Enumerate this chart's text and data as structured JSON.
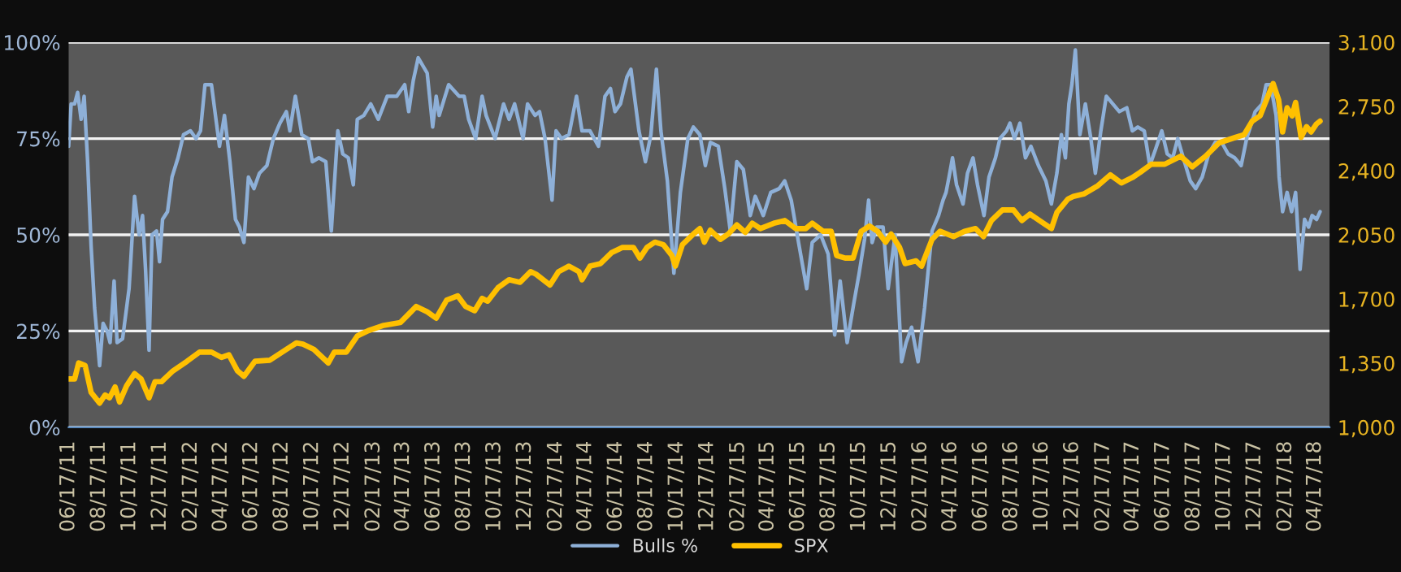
{
  "chart_data": {
    "type": "line",
    "xlim": [
      "2011-06-17",
      "2018-05-16"
    ],
    "xticks": [
      {
        "value": "2011-06-17",
        "label": "06/17/11"
      },
      {
        "value": "2011-08-17",
        "label": "08/17/11"
      },
      {
        "value": "2011-10-17",
        "label": "10/17/11"
      },
      {
        "value": "2011-12-17",
        "label": "12/17/11"
      },
      {
        "value": "2012-02-17",
        "label": "02/17/12"
      },
      {
        "value": "2012-04-17",
        "label": "04/17/12"
      },
      {
        "value": "2012-06-17",
        "label": "06/17/12"
      },
      {
        "value": "2012-08-17",
        "label": "08/17/12"
      },
      {
        "value": "2012-10-17",
        "label": "10/17/12"
      },
      {
        "value": "2012-12-17",
        "label": "12/17/12"
      },
      {
        "value": "2013-02-17",
        "label": "02/17/13"
      },
      {
        "value": "2013-04-17",
        "label": "04/17/13"
      },
      {
        "value": "2013-06-17",
        "label": "06/17/13"
      },
      {
        "value": "2013-08-17",
        "label": "08/17/13"
      },
      {
        "value": "2013-10-17",
        "label": "10/17/13"
      },
      {
        "value": "2013-12-17",
        "label": "12/17/13"
      },
      {
        "value": "2014-02-17",
        "label": "02/17/14"
      },
      {
        "value": "2014-04-17",
        "label": "04/17/14"
      },
      {
        "value": "2014-06-17",
        "label": "06/17/14"
      },
      {
        "value": "2014-08-17",
        "label": "08/17/14"
      },
      {
        "value": "2014-10-17",
        "label": "10/17/14"
      },
      {
        "value": "2014-12-17",
        "label": "12/17/14"
      },
      {
        "value": "2015-02-17",
        "label": "02/17/15"
      },
      {
        "value": "2015-04-17",
        "label": "04/17/15"
      },
      {
        "value": "2015-06-17",
        "label": "06/17/15"
      },
      {
        "value": "2015-08-17",
        "label": "08/17/15"
      },
      {
        "value": "2015-10-17",
        "label": "10/17/15"
      },
      {
        "value": "2015-12-17",
        "label": "12/17/15"
      },
      {
        "value": "2016-02-17",
        "label": "02/17/16"
      },
      {
        "value": "2016-04-17",
        "label": "04/17/16"
      },
      {
        "value": "2016-06-17",
        "label": "06/17/16"
      },
      {
        "value": "2016-08-17",
        "label": "08/17/16"
      },
      {
        "value": "2016-10-17",
        "label": "10/17/16"
      },
      {
        "value": "2016-12-17",
        "label": "12/17/16"
      },
      {
        "value": "2017-02-17",
        "label": "02/17/17"
      },
      {
        "value": "2017-04-17",
        "label": "04/17/17"
      },
      {
        "value": "2017-06-17",
        "label": "06/17/17"
      },
      {
        "value": "2017-08-17",
        "label": "08/17/17"
      },
      {
        "value": "2017-10-17",
        "label": "10/17/17"
      },
      {
        "value": "2017-12-17",
        "label": "12/17/17"
      },
      {
        "value": "2018-02-17",
        "label": "02/17/18"
      },
      {
        "value": "2018-04-17",
        "label": "04/17/18"
      }
    ],
    "ylim": [
      0,
      100
    ],
    "yticks": [
      {
        "value": 0,
        "label": "0%"
      },
      {
        "value": 25,
        "label": "25%"
      },
      {
        "value": 50,
        "label": "50%"
      },
      {
        "value": 75,
        "label": "75%"
      },
      {
        "value": 100,
        "label": "100%"
      }
    ],
    "y2lim": [
      1000,
      3100
    ],
    "y2ticks": [
      {
        "value": 1000,
        "label": "1,000"
      },
      {
        "value": 1350,
        "label": "1,350"
      },
      {
        "value": 1700,
        "label": "1,700"
      },
      {
        "value": 2050,
        "label": "2,050"
      },
      {
        "value": 2400,
        "label": "2,400"
      },
      {
        "value": 2750,
        "label": "2,750"
      },
      {
        "value": 3100,
        "label": "3,100"
      }
    ],
    "grid": "y",
    "legend": "bottom",
    "line_style": "solid",
    "marker": "none",
    "series": [
      {
        "name": "Bulls %",
        "color": "#8eb0d8",
        "x": [
          "2011-06-17",
          "2011-06-22",
          "2011-06-29",
          "2011-07-05",
          "2011-07-12",
          "2011-07-18",
          "2011-07-25",
          "2011-08-01",
          "2011-08-08",
          "2011-08-18",
          "2011-08-25",
          "2011-09-02",
          "2011-09-08",
          "2011-09-16",
          "2011-09-22",
          "2011-10-03",
          "2011-10-16",
          "2011-10-27",
          "2011-11-05",
          "2011-11-12",
          "2011-11-18",
          "2011-11-25",
          "2011-12-01",
          "2011-12-10",
          "2011-12-16",
          "2011-12-22",
          "2012-01-01",
          "2012-01-10",
          "2012-01-22",
          "2012-02-02",
          "2012-02-16",
          "2012-02-27",
          "2012-03-07",
          "2012-03-16",
          "2012-03-29",
          "2012-04-14",
          "2012-04-24",
          "2012-05-05",
          "2012-05-16",
          "2012-05-24",
          "2012-06-02",
          "2012-06-11",
          "2012-06-22",
          "2012-07-03",
          "2012-07-18",
          "2012-07-31",
          "2012-08-13",
          "2012-08-26",
          "2012-09-02",
          "2012-09-13",
          "2012-09-26",
          "2012-10-09",
          "2012-10-17",
          "2012-10-30",
          "2012-11-13",
          "2012-11-24",
          "2012-12-07",
          "2012-12-17",
          "2012-12-28",
          "2013-01-07",
          "2013-01-15",
          "2013-01-28",
          "2013-02-11",
          "2013-02-26",
          "2013-03-16",
          "2013-04-04",
          "2013-04-20",
          "2013-04-28",
          "2013-05-07",
          "2013-05-17",
          "2013-06-04",
          "2013-06-15",
          "2013-06-22",
          "2013-06-28",
          "2013-07-17",
          "2013-08-07",
          "2013-08-17",
          "2013-08-26",
          "2013-09-09",
          "2013-09-22",
          "2013-09-30",
          "2013-10-18",
          "2013-11-04",
          "2013-11-15",
          "2013-11-26",
          "2013-12-13",
          "2013-12-22",
          "2014-01-06",
          "2014-01-15",
          "2014-01-26",
          "2014-02-09",
          "2014-02-17",
          "2014-02-28",
          "2014-03-15",
          "2014-03-30",
          "2014-04-10",
          "2014-04-26",
          "2014-05-13",
          "2014-05-26",
          "2014-06-06",
          "2014-06-15",
          "2014-06-26",
          "2014-07-09",
          "2014-07-17",
          "2014-08-02",
          "2014-08-15",
          "2014-08-26",
          "2014-09-06",
          "2014-09-15",
          "2014-09-28",
          "2014-10-11",
          "2014-10-24",
          "2014-11-08",
          "2014-11-19",
          "2014-12-02",
          "2014-12-13",
          "2014-12-23",
          "2015-01-08",
          "2015-01-21",
          "2015-02-01",
          "2015-02-14",
          "2015-02-27",
          "2015-03-13",
          "2015-03-23",
          "2015-04-08",
          "2015-04-23",
          "2015-05-10",
          "2015-05-21",
          "2015-06-03",
          "2015-06-19",
          "2015-07-04",
          "2015-07-15",
          "2015-08-01",
          "2015-08-16",
          "2015-08-29",
          "2015-09-09",
          "2015-09-23",
          "2015-10-06",
          "2015-10-17",
          "2015-10-28",
          "2015-11-05",
          "2015-11-12",
          "2015-11-21",
          "2015-12-04",
          "2015-12-14",
          "2015-12-28",
          "2016-01-10",
          "2016-01-19",
          "2016-01-30",
          "2016-02-12",
          "2016-02-25",
          "2016-03-11",
          "2016-03-24",
          "2016-04-02",
          "2016-04-08",
          "2016-04-14",
          "2016-04-21",
          "2016-04-29",
          "2016-05-12",
          "2016-05-21",
          "2016-06-01",
          "2016-06-10",
          "2016-06-23",
          "2016-07-03",
          "2016-07-16",
          "2016-07-25",
          "2016-08-07",
          "2016-08-14",
          "2016-08-23",
          "2016-09-03",
          "2016-09-14",
          "2016-09-25",
          "2016-10-10",
          "2016-10-25",
          "2016-11-05",
          "2016-11-16",
          "2016-11-25",
          "2016-12-03",
          "2016-12-10",
          "2016-12-16",
          "2016-12-23",
          "2017-01-01",
          "2017-01-12",
          "2017-01-23",
          "2017-02-01",
          "2017-02-12",
          "2017-02-23",
          "2017-03-08",
          "2017-03-21",
          "2017-04-05",
          "2017-04-16",
          "2017-04-27",
          "2017-05-10",
          "2017-05-21",
          "2017-06-01",
          "2017-06-14",
          "2017-06-25",
          "2017-07-06",
          "2017-07-16",
          "2017-07-27",
          "2017-08-10",
          "2017-08-21",
          "2017-09-03",
          "2017-09-16",
          "2017-09-29",
          "2017-10-12",
          "2017-10-25",
          "2017-11-07",
          "2017-11-20",
          "2017-12-01",
          "2017-12-18",
          "2018-01-01",
          "2018-01-09",
          "2018-01-18",
          "2018-01-29",
          "2018-02-04",
          "2018-02-11",
          "2018-02-20",
          "2018-03-01",
          "2018-03-09",
          "2018-03-18",
          "2018-03-27",
          "2018-04-04",
          "2018-04-11",
          "2018-04-20",
          "2018-04-27"
        ],
        "values": [
          73,
          84,
          84,
          87,
          80,
          86,
          69,
          47,
          31,
          16,
          27,
          25,
          22,
          38,
          22,
          23,
          36,
          60,
          50,
          55,
          41,
          20,
          50,
          51,
          43,
          54,
          56,
          65,
          70,
          76,
          77,
          75,
          77,
          89,
          89,
          73,
          81,
          69,
          54,
          52,
          48,
          65,
          62,
          66,
          68,
          75,
          79,
          82,
          77,
          86,
          76,
          75,
          69,
          70,
          69,
          51,
          77,
          71,
          70,
          63,
          80,
          81,
          84,
          80,
          86,
          86,
          89,
          82,
          90,
          96,
          92,
          78,
          86,
          81,
          89,
          86,
          86,
          80,
          75,
          86,
          81,
          75,
          84,
          80,
          84,
          75,
          84,
          81,
          82,
          75,
          59,
          77,
          75,
          76,
          86,
          77,
          77,
          73,
          86,
          88,
          82,
          84,
          91,
          93,
          77,
          69,
          76,
          93,
          77,
          64,
          40,
          61,
          75,
          78,
          76,
          68,
          74,
          73,
          62,
          51,
          69,
          67,
          55,
          60,
          55,
          61,
          62,
          64,
          59,
          47,
          36,
          48,
          50,
          45,
          24,
          38,
          22,
          32,
          40,
          49,
          59,
          48,
          52,
          52,
          36,
          50,
          17,
          22,
          26,
          17,
          31,
          51,
          55,
          59,
          61,
          65,
          70,
          63,
          58,
          66,
          70,
          63,
          55,
          65,
          70,
          75,
          77,
          79,
          75,
          79,
          70,
          73,
          68,
          64,
          58,
          66,
          76,
          70,
          84,
          89,
          98,
          76,
          84,
          75,
          66,
          77,
          86,
          84,
          82,
          83,
          77,
          78,
          77,
          68,
          72,
          77,
          71,
          70,
          75,
          70,
          64,
          62,
          65,
          71,
          74,
          74,
          71,
          70,
          68,
          75,
          82,
          84,
          89,
          89,
          81,
          65,
          56,
          61,
          56,
          61,
          41,
          54,
          52,
          55,
          54,
          56
        ]
      },
      {
        "name": "SPX",
        "color": "#ffc000",
        "axis": "y2",
        "x": [
          "2011-06-17",
          "2011-06-29",
          "2011-07-07",
          "2011-07-20",
          "2011-08-01",
          "2011-08-18",
          "2011-08-29",
          "2011-09-07",
          "2011-09-18",
          "2011-09-27",
          "2011-10-11",
          "2011-10-27",
          "2011-11-09",
          "2011-11-25",
          "2011-12-07",
          "2011-12-20",
          "2012-01-12",
          "2012-02-09",
          "2012-03-05",
          "2012-03-29",
          "2012-04-18",
          "2012-05-03",
          "2012-05-20",
          "2012-06-02",
          "2012-06-24",
          "2012-07-24",
          "2012-08-26",
          "2012-09-15",
          "2012-09-28",
          "2012-10-20",
          "2012-11-18",
          "2012-11-30",
          "2012-12-24",
          "2013-01-15",
          "2013-02-06",
          "2013-03-09",
          "2013-04-11",
          "2013-05-13",
          "2013-06-04",
          "2013-06-22",
          "2013-07-13",
          "2013-08-04",
          "2013-08-20",
          "2013-09-07",
          "2013-09-22",
          "2013-10-03",
          "2013-10-24",
          "2013-11-15",
          "2013-12-07",
          "2013-12-28",
          "2014-01-08",
          "2014-02-05",
          "2014-02-22",
          "2014-03-15",
          "2014-04-04",
          "2014-04-10",
          "2014-04-26",
          "2014-05-17",
          "2014-06-08",
          "2014-06-30",
          "2014-07-22",
          "2014-08-04",
          "2014-08-18",
          "2014-09-03",
          "2014-09-20",
          "2014-10-07",
          "2014-10-14",
          "2014-10-28",
          "2014-11-19",
          "2014-12-02",
          "2014-12-11",
          "2014-12-23",
          "2015-01-12",
          "2015-01-28",
          "2015-02-14",
          "2015-03-03",
          "2015-03-17",
          "2015-04-02",
          "2015-04-29",
          "2015-05-21",
          "2015-06-12",
          "2015-07-02",
          "2015-07-15",
          "2015-08-06",
          "2015-08-22",
          "2015-09-02",
          "2015-09-19",
          "2015-10-05",
          "2015-10-21",
          "2015-11-07",
          "2015-11-23",
          "2015-12-09",
          "2015-12-20",
          "2016-01-06",
          "2016-01-17",
          "2016-02-08",
          "2016-02-19",
          "2016-03-11",
          "2016-03-27",
          "2016-04-23",
          "2016-05-15",
          "2016-06-06",
          "2016-06-22",
          "2016-07-08",
          "2016-07-30",
          "2016-08-21",
          "2016-09-07",
          "2016-09-23",
          "2016-10-20",
          "2016-11-05",
          "2016-11-16",
          "2016-12-08",
          "2016-12-19",
          "2017-01-10",
          "2017-02-06",
          "2017-03-03",
          "2017-03-25",
          "2017-04-16",
          "2017-05-02",
          "2017-05-24",
          "2017-06-20",
          "2017-07-22",
          "2017-08-14",
          "2017-09-10",
          "2017-10-07",
          "2017-11-09",
          "2017-11-26",
          "2017-12-12",
          "2017-12-28",
          "2018-01-14",
          "2018-01-23",
          "2018-02-03",
          "2018-02-11",
          "2018-02-20",
          "2018-03-02",
          "2018-03-09",
          "2018-03-20",
          "2018-03-31",
          "2018-04-09",
          "2018-04-20",
          "2018-04-27"
        ],
        "values": [
          1264,
          1264,
          1351,
          1337,
          1190,
          1132,
          1176,
          1161,
          1220,
          1138,
          1226,
          1293,
          1264,
          1161,
          1249,
          1249,
          1308,
          1360,
          1410,
          1410,
          1381,
          1395,
          1308,
          1278,
          1360,
          1366,
          1425,
          1460,
          1454,
          1425,
          1351,
          1410,
          1410,
          1498,
          1527,
          1556,
          1571,
          1659,
          1630,
          1595,
          1694,
          1717,
          1659,
          1636,
          1703,
          1688,
          1762,
          1805,
          1791,
          1849,
          1835,
          1776,
          1849,
          1879,
          1849,
          1805,
          1879,
          1893,
          1952,
          1981,
          1981,
          1923,
          1981,
          2010,
          1996,
          1937,
          1879,
          1996,
          2054,
          2084,
          2010,
          2075,
          2025,
          2054,
          2104,
          2063,
          2113,
          2084,
          2113,
          2128,
          2084,
          2084,
          2113,
          2069,
          2069,
          1937,
          1923,
          1923,
          2069,
          2098,
          2069,
          2010,
          2054,
          1981,
          1893,
          1908,
          1879,
          2025,
          2069,
          2040,
          2069,
          2084,
          2040,
          2128,
          2186,
          2186,
          2128,
          2163,
          2113,
          2084,
          2172,
          2245,
          2259,
          2274,
          2318,
          2377,
          2333,
          2362,
          2391,
          2435,
          2435,
          2479,
          2421,
          2479,
          2552,
          2582,
          2596,
          2670,
          2699,
          2816,
          2875,
          2787,
          2611,
          2743,
          2699,
          2772,
          2582,
          2640,
          2611,
          2655,
          2670
        ]
      }
    ]
  }
}
